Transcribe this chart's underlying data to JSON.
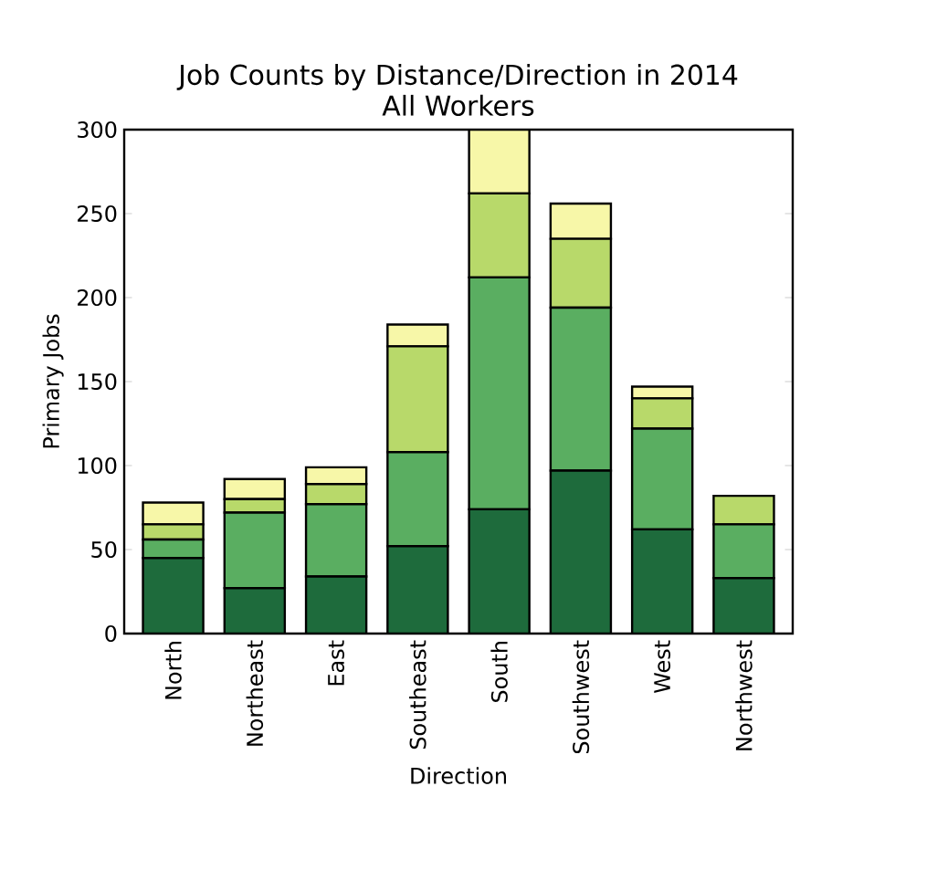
{
  "chart_data": {
    "type": "bar",
    "stacked": true,
    "title": "Job Counts by Distance/Direction in 2014",
    "subtitle": "All Workers",
    "xlabel": "Direction",
    "ylabel": "Primary Jobs",
    "categories": [
      "North",
      "Northeast",
      "East",
      "Southeast",
      "South",
      "Southwest",
      "West",
      "Northwest"
    ],
    "series": [
      {
        "color": "#1e6b3c",
        "values": [
          45,
          27,
          34,
          52,
          74,
          97,
          62,
          33
        ]
      },
      {
        "color": "#5aae61",
        "values": [
          11,
          45,
          43,
          56,
          138,
          97,
          60,
          32
        ]
      },
      {
        "color": "#b8d96a",
        "values": [
          9,
          8,
          12,
          63,
          50,
          41,
          18,
          17
        ]
      },
      {
        "color": "#f7f7a8",
        "values": [
          13,
          12,
          10,
          13,
          38,
          21,
          7,
          0
        ]
      }
    ],
    "ylim": [
      0,
      300
    ],
    "yticks": [
      0,
      50,
      100,
      150,
      200,
      250,
      300
    ]
  }
}
